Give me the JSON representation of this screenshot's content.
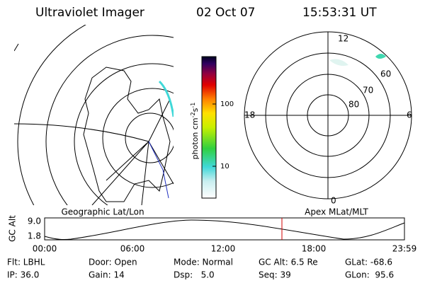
{
  "header": {
    "title": "Ultraviolet Imager",
    "date": "02 Oct 07",
    "time": "15:53:31 UT"
  },
  "colorbar": {
    "label": "photon cm",
    "exp1": "-2",
    "unit2": "s",
    "exp2": "-1",
    "ticks": [
      "100",
      "10"
    ]
  },
  "polar_plot": {
    "mlt_labels": [
      "12",
      "18",
      "6",
      "0"
    ],
    "lat_labels": [
      "60",
      "70",
      "80"
    ]
  },
  "orbit_plot": {
    "left_label": "Geographic Lat/Lon",
    "right_label": "Apex MLat/MLT",
    "y_label": "GC Alt",
    "y_ticks": [
      "9.0",
      "1.8"
    ],
    "x_ticks": [
      "00:00",
      "06:00",
      "12:00",
      "18:00",
      "23:59"
    ]
  },
  "footer": {
    "rows": [
      [
        "Flt: LBHL",
        "Door: Open",
        "Mode: Normal",
        "GC Alt: 6.5 Re",
        "GLat: -68.6"
      ],
      [
        "IP: 36.0",
        "Gain: 14",
        "Dsp:   5.0",
        "Seq: 39",
        "GLon:  95.6"
      ]
    ]
  }
}
